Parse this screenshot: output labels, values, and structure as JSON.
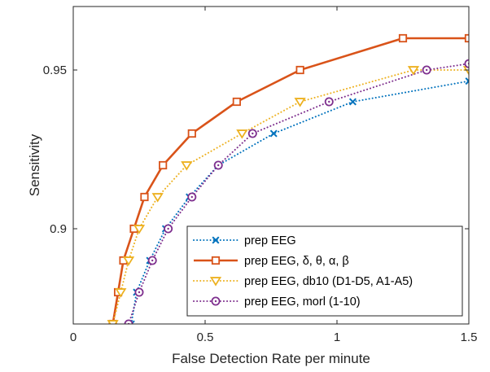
{
  "chart_data": {
    "type": "line",
    "title": "",
    "xlabel": "False Detection Rate per minute",
    "ylabel": "Sensitivity",
    "xlim": [
      0,
      1.5
    ],
    "ylim": [
      0.87,
      0.97
    ],
    "xticks": [
      0,
      0.5,
      1,
      1.5
    ],
    "xtick_labels": [
      "0",
      "0.5",
      "1",
      "1.5"
    ],
    "yticks": [
      0.9,
      0.95
    ],
    "ytick_labels": [
      "0.9",
      "0.95"
    ],
    "grid": false,
    "legend_position": "bottom-right",
    "series": [
      {
        "name": "prep EEG",
        "color": "#0072BD",
        "line_style": "dotted",
        "marker": "x",
        "x": [
          0.22,
          0.24,
          0.29,
          0.35,
          0.44,
          0.55,
          0.76,
          1.06,
          1.5
        ],
        "y": [
          0.87,
          0.88,
          0.89,
          0.9,
          0.91,
          0.92,
          0.93,
          0.94,
          0.9465
        ]
      },
      {
        "name": "prep EEG, δ, θ, α, β",
        "color": "#D95319",
        "line_style": "solid",
        "marker": "square",
        "x": [
          0.15,
          0.17,
          0.19,
          0.23,
          0.27,
          0.34,
          0.45,
          0.62,
          0.86,
          1.25,
          1.5
        ],
        "y": [
          0.87,
          0.88,
          0.89,
          0.9,
          0.91,
          0.92,
          0.93,
          0.94,
          0.95,
          0.96,
          0.96
        ]
      },
      {
        "name": "prep EEG, db10 (D1-D5, A1-A5)",
        "color": "#EDB120",
        "line_style": "dotted",
        "marker": "triangle-down",
        "x": [
          0.15,
          0.18,
          0.21,
          0.25,
          0.32,
          0.43,
          0.64,
          0.86,
          1.29,
          1.5
        ],
        "y": [
          0.87,
          0.88,
          0.89,
          0.9,
          0.91,
          0.92,
          0.93,
          0.94,
          0.95,
          0.95
        ]
      },
      {
        "name": "prep EEG, morl (1-10)",
        "color": "#7E2F8E",
        "line_style": "dotted",
        "marker": "circle-dot",
        "x": [
          0.21,
          0.25,
          0.3,
          0.36,
          0.45,
          0.55,
          0.68,
          0.97,
          1.34,
          1.5
        ],
        "y": [
          0.87,
          0.88,
          0.89,
          0.9,
          0.91,
          0.92,
          0.93,
          0.94,
          0.95,
          0.952
        ]
      }
    ]
  }
}
